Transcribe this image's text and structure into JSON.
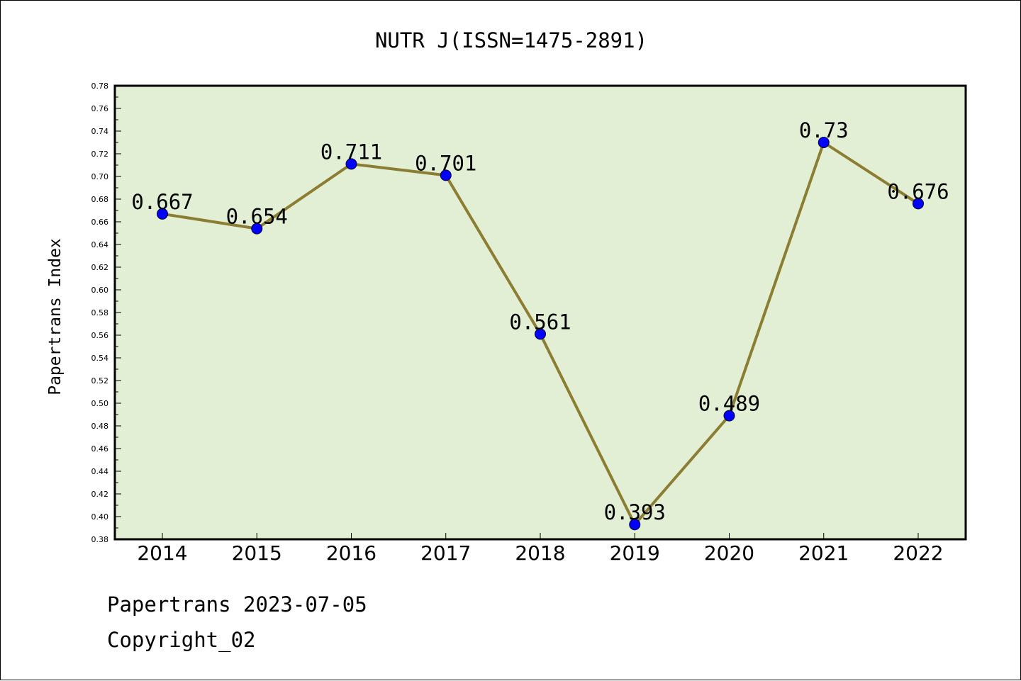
{
  "chart_data": {
    "type": "line",
    "title": "NUTR J(ISSN=1475-2891)",
    "xlabel": "",
    "ylabel": "Papertrans Index",
    "categories": [
      "2014",
      "2015",
      "2016",
      "2017",
      "2018",
      "2019",
      "2020",
      "2021",
      "2022"
    ],
    "series": [
      {
        "values": [
          0.667,
          0.654,
          0.711,
          0.701,
          0.561,
          0.393,
          0.489,
          0.73,
          0.676
        ],
        "labels": [
          "0.667",
          "0.654",
          "0.711",
          "0.701",
          "0.561",
          "0.393",
          "0.489",
          "0.73",
          "0.676"
        ],
        "line_color": "#8b7d32",
        "marker_color": "#0000ff"
      }
    ],
    "ylim": [
      0.38,
      0.78
    ],
    "yticks": [
      "0.38",
      "0.40",
      "0.42",
      "0.44",
      "0.46",
      "0.48",
      "0.50",
      "0.52",
      "0.54",
      "0.56",
      "0.58",
      "0.60",
      "0.62",
      "0.64",
      "0.66",
      "0.68",
      "0.70",
      "0.72",
      "0.74",
      "0.76",
      "0.78"
    ],
    "plot_background": "#e2efd4",
    "grid": false,
    "legend": "none"
  },
  "footer": {
    "line1": "Papertrans 2023-07-05",
    "line2": "Copyright_02"
  }
}
